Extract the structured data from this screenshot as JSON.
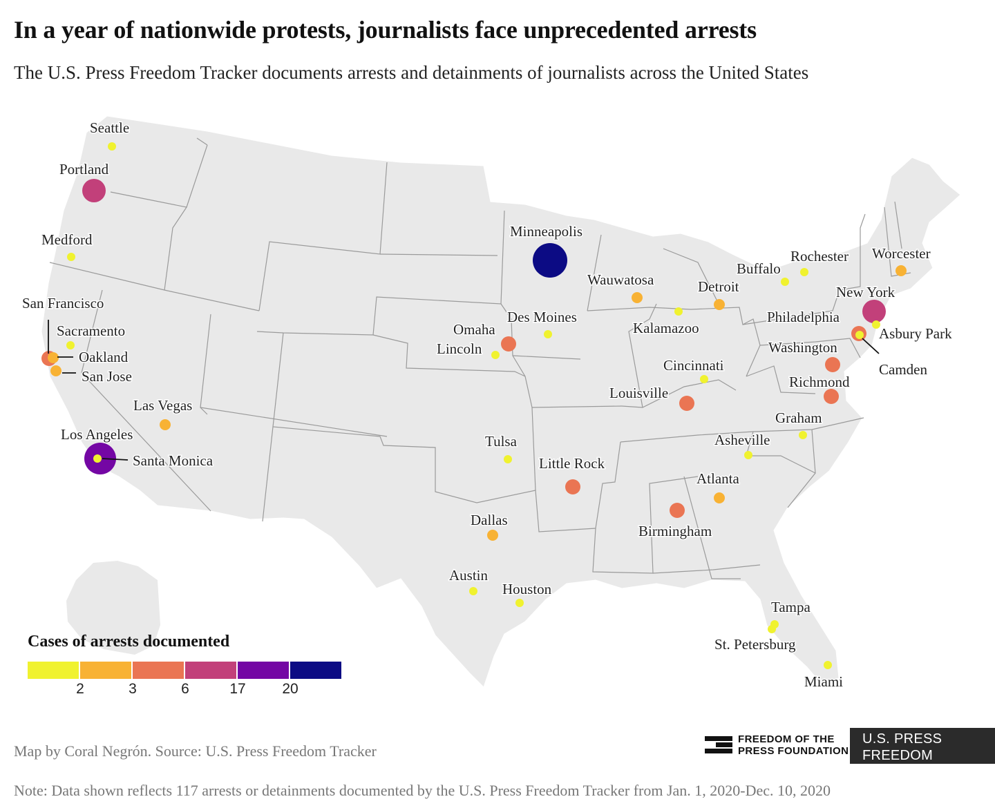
{
  "title": "In a year of nationwide protests, journalists face unprecedented arrests",
  "subtitle": "The U.S. Press Freedom Tracker documents arrests and detainments of journalists across the United States",
  "legend": {
    "title": "Cases of arrests documented",
    "colors": [
      "#f0f22f",
      "#f8b234",
      "#ea7553",
      "#c2407a",
      "#7407a4",
      "#0c0b84"
    ],
    "ticks": [
      "2",
      "3",
      "6",
      "17",
      "20"
    ]
  },
  "source": "Map by Coral Negrón. Source: U.S. Press Freedom Tracker",
  "note": "Note: Data shown reflects 117 arrests or detainments documented by the U.S. Press Freedom Tracker from Jan. 1, 2020-Dec. 10, 2020",
  "logos": {
    "fpf_line1": "FREEDOM OF THE",
    "fpf_line2": "PRESS FOUNDATION",
    "tracker_line1": "U.S. PRESS",
    "tracker_line2": "FREEDOM TRACKER"
  },
  "chart_data": {
    "type": "map",
    "color_bins": [
      "1-2",
      "2-3",
      "3-6",
      "6-17",
      "17-20",
      "20+"
    ],
    "cities": [
      {
        "name": "Seattle",
        "bin": 0,
        "lat": 47.6,
        "lon": -122.3
      },
      {
        "name": "Portland",
        "bin": 3,
        "lat": 45.5,
        "lon": -122.7
      },
      {
        "name": "Medford",
        "bin": 0,
        "lat": 42.3,
        "lon": -122.9
      },
      {
        "name": "San Francisco",
        "bin": 2,
        "lat": 37.77,
        "lon": -122.42
      },
      {
        "name": "Sacramento",
        "bin": 0,
        "lat": 38.58,
        "lon": -121.49
      },
      {
        "name": "Oakland",
        "bin": 1,
        "lat": 37.8,
        "lon": -122.27
      },
      {
        "name": "San Jose",
        "bin": 1,
        "lat": 37.34,
        "lon": -121.89
      },
      {
        "name": "Las Vegas",
        "bin": 1,
        "lat": 36.17,
        "lon": -115.14
      },
      {
        "name": "Los Angeles",
        "bin": 4,
        "lat": 34.05,
        "lon": -118.24
      },
      {
        "name": "Santa Monica",
        "bin": 0,
        "lat": 34.02,
        "lon": -118.49
      },
      {
        "name": "Minneapolis",
        "bin": 5,
        "lat": 44.98,
        "lon": -93.27
      },
      {
        "name": "Omaha",
        "bin": 2,
        "lat": 41.26,
        "lon": -95.93
      },
      {
        "name": "Lincoln",
        "bin": 0,
        "lat": 40.81,
        "lon": -96.7
      },
      {
        "name": "Des Moines",
        "bin": 0,
        "lat": 41.59,
        "lon": -93.62
      },
      {
        "name": "Wauwatosa",
        "bin": 1,
        "lat": 43.05,
        "lon": -88.0
      },
      {
        "name": "Kalamazoo",
        "bin": 0,
        "lat": 42.29,
        "lon": -85.59
      },
      {
        "name": "Detroit",
        "bin": 1,
        "lat": 42.33,
        "lon": -83.05
      },
      {
        "name": "Buffalo",
        "bin": 0,
        "lat": 42.89,
        "lon": -78.88
      },
      {
        "name": "Rochester",
        "bin": 0,
        "lat": 43.16,
        "lon": -77.61
      },
      {
        "name": "Worcester",
        "bin": 1,
        "lat": 42.26,
        "lon": -71.8
      },
      {
        "name": "New York",
        "bin": 3,
        "lat": 40.71,
        "lon": -74.01
      },
      {
        "name": "Asbury Park",
        "bin": 0,
        "lat": 40.22,
        "lon": -74.01
      },
      {
        "name": "Philadelphia",
        "bin": 2,
        "lat": 39.95,
        "lon": -75.17
      },
      {
        "name": "Camden",
        "bin": 0,
        "lat": 39.93,
        "lon": -75.12
      },
      {
        "name": "Washington",
        "bin": 2,
        "lat": 38.91,
        "lon": -77.04
      },
      {
        "name": "Richmond",
        "bin": 2,
        "lat": 37.54,
        "lon": -77.44
      },
      {
        "name": "Cincinnati",
        "bin": 0,
        "lat": 39.1,
        "lon": -84.51
      },
      {
        "name": "Louisville",
        "bin": 2,
        "lat": 38.25,
        "lon": -85.76
      },
      {
        "name": "Graham",
        "bin": 0,
        "lat": 36.07,
        "lon": -79.4
      },
      {
        "name": "Asheville",
        "bin": 0,
        "lat": 35.6,
        "lon": -82.55
      },
      {
        "name": "Tulsa",
        "bin": 0,
        "lat": 36.15,
        "lon": -95.99
      },
      {
        "name": "Little Rock",
        "bin": 2,
        "lat": 34.75,
        "lon": -92.29
      },
      {
        "name": "Atlanta",
        "bin": 1,
        "lat": 33.75,
        "lon": -84.39
      },
      {
        "name": "Birmingham",
        "bin": 2,
        "lat": 33.52,
        "lon": -86.8
      },
      {
        "name": "Dallas",
        "bin": 1,
        "lat": 32.78,
        "lon": -96.8
      },
      {
        "name": "Austin",
        "bin": 0,
        "lat": 30.27,
        "lon": -97.74
      },
      {
        "name": "Houston",
        "bin": 0,
        "lat": 29.76,
        "lon": -95.37
      },
      {
        "name": "Tampa",
        "bin": 0,
        "lat": 27.95,
        "lon": -82.46
      },
      {
        "name": "St. Petersburg",
        "bin": 0,
        "lat": 27.77,
        "lon": -82.64
      },
      {
        "name": "Miami",
        "bin": 0,
        "lat": 25.76,
        "lon": -80.19
      }
    ]
  }
}
